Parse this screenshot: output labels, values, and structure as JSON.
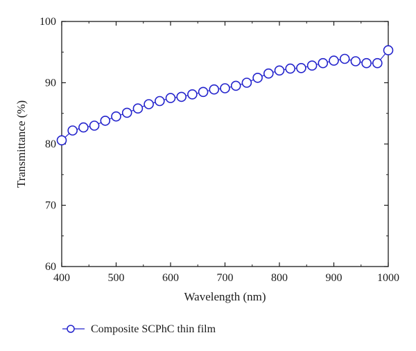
{
  "chart_data": {
    "type": "line",
    "title": "",
    "xlabel": "Wavelength (nm)",
    "ylabel": "Transmittance (%)",
    "xlim": [
      400,
      1000
    ],
    "ylim": [
      60,
      100
    ],
    "x_ticks": [
      400,
      500,
      600,
      700,
      800,
      900,
      1000
    ],
    "y_ticks": [
      60,
      70,
      80,
      90,
      100
    ],
    "grid": false,
    "legend_position": "bottom-left",
    "series": [
      {
        "name": "Composite SCPhC thin film",
        "color": "#2222cc",
        "marker": "open-circle",
        "x": [
          400,
          420,
          440,
          460,
          480,
          500,
          520,
          540,
          560,
          580,
          600,
          620,
          640,
          660,
          680,
          700,
          720,
          740,
          760,
          780,
          800,
          820,
          840,
          860,
          880,
          900,
          920,
          940,
          960,
          980,
          1000
        ],
        "y": [
          80.6,
          82.2,
          82.7,
          83.0,
          83.8,
          84.5,
          85.1,
          85.8,
          86.5,
          87.0,
          87.5,
          87.7,
          88.1,
          88.5,
          88.9,
          89.1,
          89.5,
          90.0,
          90.8,
          91.5,
          92.0,
          92.3,
          92.4,
          92.8,
          93.2,
          93.6,
          93.9,
          93.5,
          93.2,
          93.2,
          95.3
        ]
      }
    ]
  }
}
